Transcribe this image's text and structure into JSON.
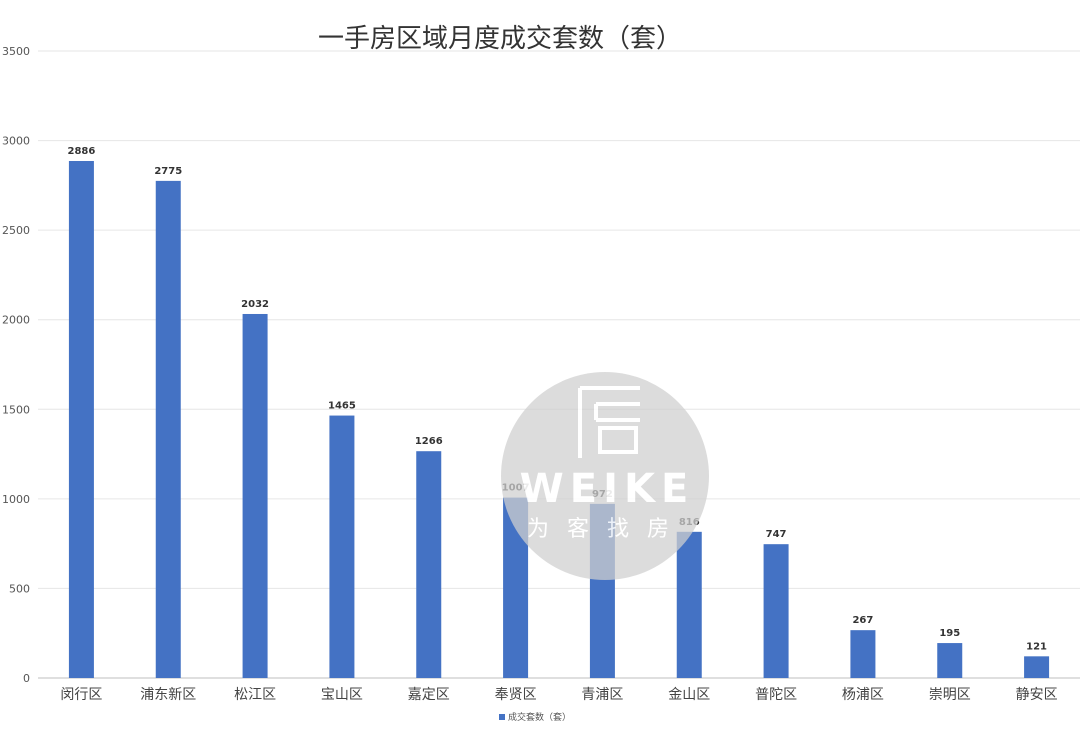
{
  "chart_data": {
    "type": "bar",
    "title": "一手房区域月度成交套数（套）",
    "categories": [
      "闵行区",
      "浦东新区",
      "松江区",
      "宝山区",
      "嘉定区",
      "奉贤区",
      "青浦区",
      "金山区",
      "普陀区",
      "杨浦区",
      "崇明区",
      "静安区"
    ],
    "series": [
      {
        "name": "成交套数（套）",
        "values": [
          2886,
          2775,
          2032,
          1465,
          1266,
          1007,
          972,
          816,
          747,
          267,
          195,
          121
        ]
      }
    ],
    "ylim": [
      0,
      3500
    ],
    "yticks": [
      0,
      500,
      1000,
      1500,
      2000,
      2500,
      3000,
      3500
    ],
    "grid": true,
    "legend_position": "bottom",
    "bar_color": "#4472C4"
  },
  "watermark": {
    "brand": "WEIKE",
    "slogan": "为客找房",
    "logo_glyph": "房",
    "icon": "weike-logo-icon"
  }
}
